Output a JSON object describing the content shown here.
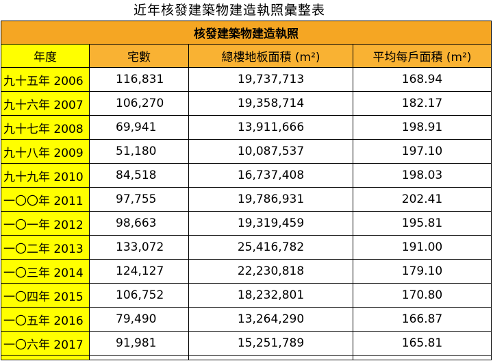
{
  "title": "近年核發建築物建造執照彙整表",
  "table": {
    "banner": "核發建築物建造執照",
    "headers": {
      "year": "年度",
      "units": "宅數",
      "floor_area": "總樓地板面積 (m²)",
      "avg_area": "平均每戶面積 (m²)"
    },
    "rows": [
      {
        "year": "九十五年 2006",
        "units": "116,831",
        "floor_area": "19,737,713",
        "avg_area": "168.94"
      },
      {
        "year": "九十六年 2007",
        "units": "106,270",
        "floor_area": "19,358,714",
        "avg_area": "182.17"
      },
      {
        "year": "九十七年 2008",
        "units": "69,941",
        "floor_area": "13,911,666",
        "avg_area": "198.91"
      },
      {
        "year": "九十八年 2009",
        "units": "51,180",
        "floor_area": "10,087,537",
        "avg_area": "197.10"
      },
      {
        "year": "九十九年 2010",
        "units": "84,518",
        "floor_area": "16,737,408",
        "avg_area": "198.03"
      },
      {
        "year": "一〇〇年 2011",
        "units": "97,755",
        "floor_area": "19,786,931",
        "avg_area": "202.41"
      },
      {
        "year": "一〇一年 2012",
        "units": "98,663",
        "floor_area": "19,319,459",
        "avg_area": "195.81"
      },
      {
        "year": "一〇二年 2013",
        "units": "133,072",
        "floor_area": "25,416,782",
        "avg_area": "191.00"
      },
      {
        "year": "一〇三年 2014",
        "units": "124,127",
        "floor_area": "22,230,818",
        "avg_area": "179.10"
      },
      {
        "year": "一〇四年 2015",
        "units": "106,752",
        "floor_area": "18,232,801",
        "avg_area": "170.80"
      },
      {
        "year": "一〇五年 2016",
        "units": "79,490",
        "floor_area": "13,264,290",
        "avg_area": "166.87"
      },
      {
        "year": "一〇六年 2017",
        "units": "91,981",
        "floor_area": "15,251,789",
        "avg_area": "165.81"
      }
    ]
  },
  "colors": {
    "banner_bg": "#f5a623",
    "header_bg": "#f9b233",
    "year_bg": "#ffff00",
    "border": "#000000"
  }
}
